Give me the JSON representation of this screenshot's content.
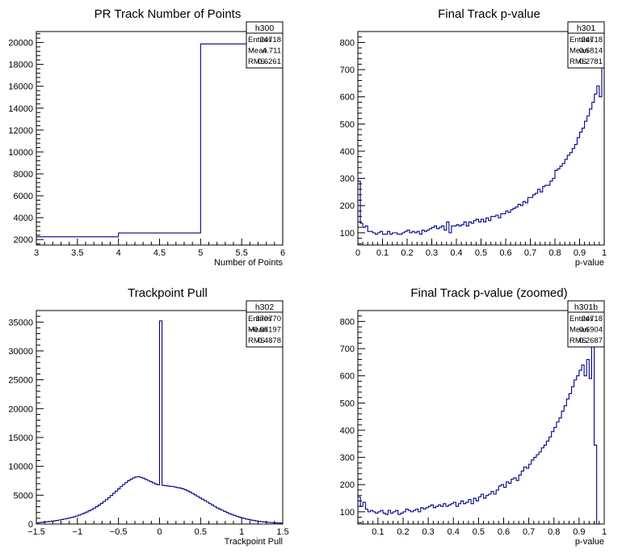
{
  "chart_data": [
    {
      "type": "histogram",
      "title": "PR Track Number of Points",
      "xlabel": "Number of Points",
      "ylabel": "",
      "xlim": [
        3,
        6
      ],
      "ylim": [
        1500,
        21000
      ],
      "grid": false,
      "xticks": [
        3,
        3.5,
        4,
        4.5,
        5,
        5.5,
        6
      ],
      "xtick_labels": [
        "3",
        "3.5",
        "4",
        "4.5",
        "5",
        "5.5",
        "6"
      ],
      "yticks": [
        2000,
        4000,
        6000,
        8000,
        10000,
        12000,
        14000,
        16000,
        18000,
        20000
      ],
      "ytick_labels": [
        "2000",
        "4000",
        "6000",
        "8000",
        "10000",
        "12000",
        "14000",
        "16000",
        "18000",
        "20000"
      ],
      "bins": [
        3,
        4,
        5,
        6
      ],
      "values": [
        2250,
        2600,
        19870
      ],
      "line_color": "#00008b",
      "stats": {
        "name": "h300",
        "rows": [
          {
            "label": "Entries",
            "value": "24718"
          },
          {
            "label": "Mean",
            "value": "4.711"
          },
          {
            "label": "RMS",
            "value": "0.6261"
          }
        ]
      }
    },
    {
      "type": "histogram",
      "title": "Final Track p-value",
      "xlabel": "p-value",
      "ylabel": "",
      "xlim": [
        0,
        1
      ],
      "ylim": [
        55,
        840
      ],
      "grid": false,
      "xticks": [
        0,
        0.1,
        0.2,
        0.3,
        0.4,
        0.5,
        0.6,
        0.7,
        0.8,
        0.9,
        1
      ],
      "xtick_labels": [
        "0",
        "0.1",
        "0.2",
        "0.3",
        "0.4",
        "0.5",
        "0.6",
        "0.7",
        "0.8",
        "0.9",
        "1"
      ],
      "yticks": [
        100,
        200,
        300,
        400,
        500,
        600,
        700,
        800
      ],
      "ytick_labels": [
        "100",
        "200",
        "300",
        "400",
        "500",
        "600",
        "700",
        "800"
      ],
      "bin_start": 0,
      "bin_width": 0.01,
      "values": [
        290,
        135,
        120,
        125,
        105,
        105,
        100,
        95,
        100,
        105,
        95,
        95,
        105,
        95,
        100,
        100,
        95,
        95,
        100,
        105,
        110,
        100,
        105,
        100,
        105,
        95,
        110,
        105,
        110,
        115,
        120,
        125,
        115,
        120,
        125,
        110,
        140,
        100,
        125,
        125,
        130,
        125,
        130,
        140,
        125,
        140,
        135,
        145,
        150,
        140,
        150,
        140,
        155,
        145,
        160,
        160,
        165,
        155,
        170,
        170,
        180,
        175,
        185,
        190,
        195,
        205,
        200,
        215,
        210,
        230,
        230,
        240,
        245,
        260,
        250,
        270,
        275,
        275,
        290,
        300,
        330,
        335,
        345,
        355,
        370,
        385,
        395,
        410,
        425,
        450,
        470,
        485,
        510,
        530,
        555,
        580,
        610,
        640,
        600,
        790,
        350
      ],
      "line_color": "#00008b",
      "stats": {
        "name": "h301",
        "rows": [
          {
            "label": "Entries",
            "value": "24718"
          },
          {
            "label": "Mean",
            "value": "0.6814"
          },
          {
            "label": "RMS",
            "value": "0.2781"
          }
        ]
      }
    },
    {
      "type": "histogram",
      "title": "Trackpoint Pull",
      "xlabel": "Trackpoint Pull",
      "ylabel": "",
      "xlim": [
        -1.5,
        1.5
      ],
      "ylim": [
        0,
        37000
      ],
      "grid": false,
      "xticks": [
        -1.5,
        -1,
        -0.5,
        0,
        0.5,
        1,
        1.5
      ],
      "xtick_labels": [
        "−1.5",
        "−1",
        "−0.5",
        "0",
        "0.5",
        "1",
        "1.5"
      ],
      "yticks": [
        0,
        5000,
        10000,
        15000,
        20000,
        25000,
        30000,
        35000
      ],
      "ytick_labels": [
        "0",
        "5000",
        "10000",
        "15000",
        "20000",
        "25000",
        "30000",
        "35000"
      ],
      "bin_start": -1.5,
      "bin_width": 0.03,
      "values": [
        200,
        250,
        300,
        350,
        400,
        450,
        500,
        550,
        620,
        700,
        780,
        860,
        950,
        1050,
        1150,
        1270,
        1400,
        1550,
        1700,
        1880,
        2070,
        2280,
        2500,
        2750,
        3000,
        3280,
        3580,
        3900,
        4230,
        4580,
        4950,
        5330,
        5720,
        6100,
        6500,
        6850,
        7200,
        7500,
        7780,
        8000,
        8150,
        8200,
        8100,
        7950,
        7750,
        7550,
        7350,
        7150,
        6950,
        6800,
        35200,
        6700,
        6650,
        6600,
        6550,
        6500,
        6400,
        6300,
        6250,
        6100,
        5950,
        5750,
        5550,
        5300,
        5050,
        4800,
        4550,
        4300,
        4050,
        3800,
        3550,
        3300,
        3050,
        2800,
        2600,
        2400,
        2200,
        2000,
        1800,
        1650,
        1500,
        1350,
        1200,
        1080,
        960,
        850,
        760,
        680,
        600,
        530,
        470,
        410,
        360,
        320,
        280,
        250,
        220,
        200,
        180,
        160
      ],
      "line_color": "#00008b",
      "stats": {
        "name": "h302",
        "rows": [
          {
            "label": "Entries",
            "value": "370770"
          },
          {
            "label": "Mean",
            "value": "−0.08197"
          },
          {
            "label": "RMS",
            "value": "0.4878"
          }
        ]
      }
    },
    {
      "type": "histogram",
      "title": "Final Track p-value (zoomed)",
      "xlabel": "p-value",
      "ylabel": "",
      "xlim": [
        0.02,
        1
      ],
      "ylim": [
        55,
        840
      ],
      "grid": false,
      "xticks": [
        0.1,
        0.2,
        0.3,
        0.4,
        0.5,
        0.6,
        0.7,
        0.8,
        0.9,
        1
      ],
      "xtick_labels": [
        "0.1",
        "0.2",
        "0.3",
        "0.4",
        "0.5",
        "0.6",
        "0.7",
        "0.8",
        "0.9",
        "1"
      ],
      "yticks": [
        100,
        200,
        300,
        400,
        500,
        600,
        700,
        800
      ],
      "ytick_labels": [
        "100",
        "200",
        "300",
        "400",
        "500",
        "600",
        "700",
        "800"
      ],
      "bin_start": 0.02,
      "bin_width": 0.01,
      "values": [
        155,
        120,
        135,
        110,
        100,
        105,
        100,
        95,
        100,
        105,
        95,
        90,
        105,
        95,
        100,
        105,
        90,
        95,
        100,
        110,
        105,
        100,
        105,
        110,
        100,
        115,
        110,
        115,
        120,
        125,
        115,
        120,
        125,
        120,
        130,
        120,
        125,
        130,
        135,
        120,
        130,
        140,
        130,
        135,
        145,
        130,
        150,
        140,
        155,
        165,
        150,
        160,
        165,
        175,
        165,
        180,
        195,
        200,
        190,
        210,
        205,
        220,
        225,
        215,
        235,
        250,
        265,
        260,
        275,
        290,
        300,
        310,
        320,
        335,
        345,
        360,
        375,
        395,
        410,
        430,
        445,
        470,
        490,
        515,
        535,
        560,
        585,
        600,
        620,
        640,
        600,
        660,
        590,
        805,
        345
      ],
      "line_color": "#00008b",
      "stats": {
        "name": "h301b",
        "rows": [
          {
            "label": "Entries",
            "value": "24718"
          },
          {
            "label": "Mean",
            "value": "0.6904"
          },
          {
            "label": "RMS",
            "value": "0.2687"
          }
        ]
      }
    }
  ]
}
